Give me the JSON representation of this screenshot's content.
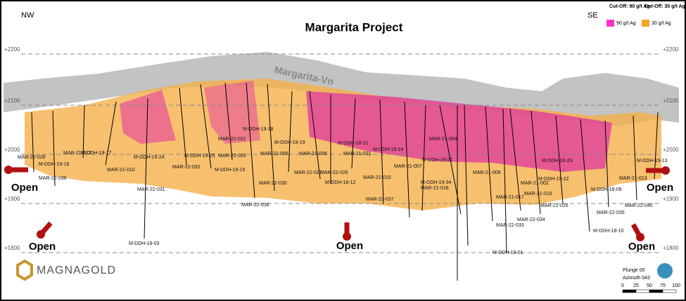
{
  "header": {
    "title": "Margarita Project",
    "left_direction": "NW",
    "right_direction": "SE"
  },
  "legend": {
    "items": [
      {
        "heading": "Cut-Off: 90 g/t Ag",
        "label": "90 g/t Ag",
        "color": "#ff33cc"
      },
      {
        "heading": "Cut-Off: 30 g/t Ag",
        "label": "30 g/t Ag",
        "color": "#f5a623"
      }
    ]
  },
  "elevations": [
    "+2200",
    "+2100",
    "+2000",
    "+1900",
    "+1800"
  ],
  "vein_label": "Margarita-Vn",
  "open_label": "Open",
  "drill_holes": [
    "MAR-22-028",
    "M-DDH-19-16",
    "MAR-22-038",
    "MAR-21-012",
    "M-DDH-19-17",
    "MAR-21-010",
    "M-DDH-19-24",
    "MAR-22-031",
    "MAR-22-032",
    "M-DDH-19-25",
    "MAR-22-029",
    "M-DDH-19-15",
    "MAR-21-011",
    "M-DDH-19-18",
    "MAR-21-006",
    "M-DDH-19-19",
    "MAR-22-030",
    "MAR-22-036",
    "MAR-22-027",
    "MAR-21-008",
    "MAR-22-026",
    "M-DDH-18-11",
    "MAR-21-021",
    "M-DDH-18-12",
    "MAR-21-015",
    "MAR-22-037",
    "M-DDH-19-24",
    "MAR-21-007",
    "MAR-21-004",
    "M-DDH-19-21",
    "M-DDH-19-34",
    "MAR-21-018",
    "MAR-21-009",
    "MAR-21-002",
    "MAR-21-019",
    "MAR-21-017",
    "MAR-21-016",
    "MAR-22-034",
    "MAR-22-033",
    "M-DDH-19-01",
    "M-DDH-19-22",
    "M-DDH-19-23",
    "M-DDH-18-09",
    "MAR-22-035",
    "MAR-22-040",
    "M-DDH-18-10",
    "MAR-21-013",
    "M-DDH-19-13",
    "M-DDH-18-03"
  ],
  "logo": "MAGNAGOLD",
  "view": {
    "plunge": "Plunge 00",
    "azimuth": "Azimuth 043",
    "scale": [
      "0",
      "25",
      "50",
      "75",
      "100"
    ]
  }
}
